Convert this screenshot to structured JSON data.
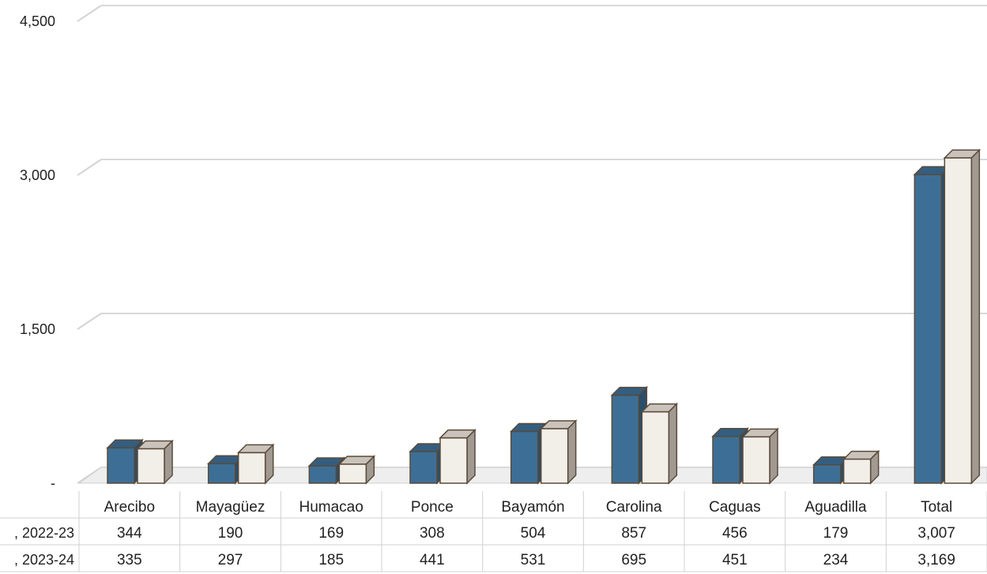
{
  "chart_data": {
    "type": "bar",
    "categories": [
      "Arecibo",
      "Mayagüez",
      "Humacao",
      "Ponce",
      "Bayamón",
      "Carolina",
      "Caguas",
      "Aguadilla",
      "Total"
    ],
    "series": [
      {
        "name": ", 2022-23",
        "values": [
          344,
          190,
          169,
          308,
          504,
          857,
          456,
          179,
          3007
        ],
        "values_text": [
          "344",
          "190",
          "169",
          "308",
          "504",
          "857",
          "456",
          "179",
          "3,007"
        ],
        "color": "#3d6f96"
      },
      {
        "name": ", 2023-24",
        "values": [
          335,
          297,
          185,
          441,
          531,
          695,
          451,
          234,
          3169
        ],
        "values_text": [
          "335",
          "297",
          "185",
          "441",
          "531",
          "695",
          "451",
          "234",
          "3,169"
        ],
        "color": "#f2eee8"
      }
    ],
    "yticks": [
      {
        "value": 0,
        "label": "-"
      },
      {
        "value": 1500,
        "label": "1,500"
      },
      {
        "value": 3000,
        "label": "3,000"
      },
      {
        "value": 4500,
        "label": "4,500"
      }
    ],
    "ylim": [
      0,
      4500
    ],
    "grid": true,
    "legend": "data-table",
    "style": "3d-clustered-column"
  }
}
